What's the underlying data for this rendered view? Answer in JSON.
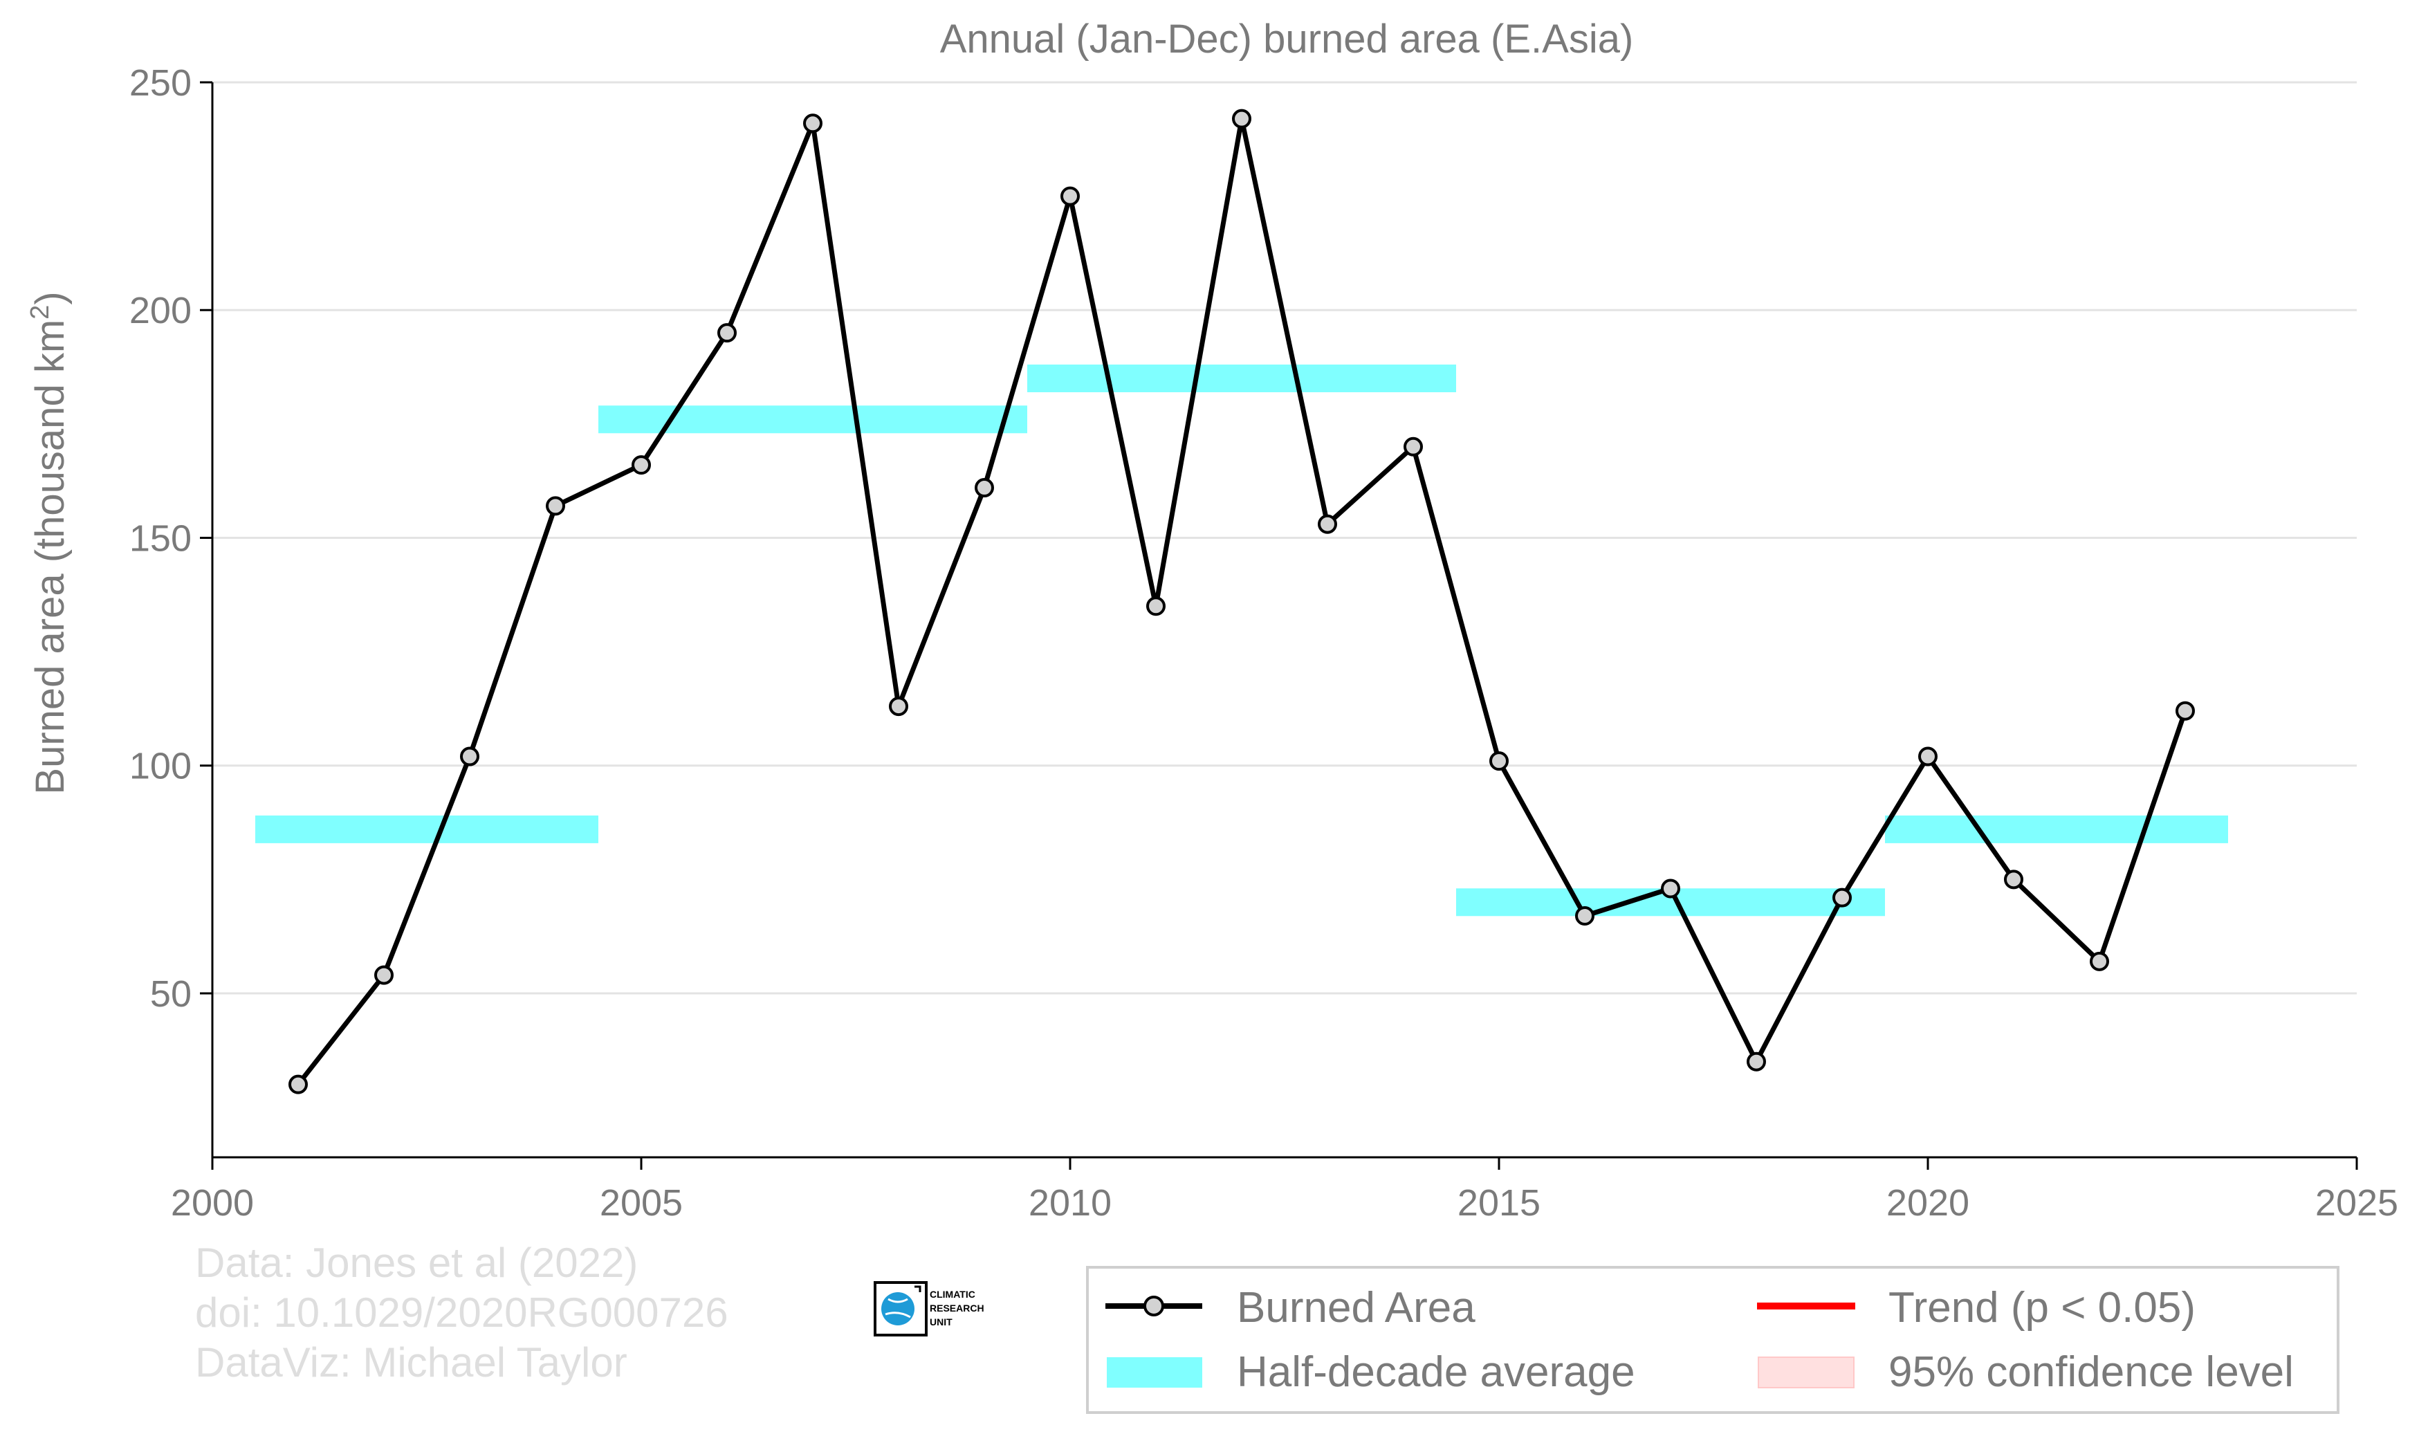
{
  "chart_data": {
    "type": "line",
    "title": "Annual (Jan-Dec) burned area (E.Asia)",
    "ylabel": "Burned area (thousand km",
    "ylabel_superscript": "2",
    "ylabel_suffix": ")",
    "xlabel": "",
    "xlim": [
      2000,
      2025
    ],
    "ylim": [
      14,
      250
    ],
    "xticks": [
      2000,
      2005,
      2010,
      2015,
      2020,
      2025
    ],
    "yticks": [
      50,
      100,
      150,
      200,
      250
    ],
    "grid": "horizontal",
    "series": [
      {
        "name": "Burned Area",
        "color": "#000000",
        "marker_fill": "#d3d3d3",
        "x": [
          2001,
          2002,
          2003,
          2004,
          2005,
          2006,
          2007,
          2008,
          2009,
          2010,
          2011,
          2012,
          2013,
          2014,
          2015,
          2016,
          2017,
          2018,
          2019,
          2020,
          2021,
          2022,
          2023
        ],
        "y": [
          30,
          54,
          102,
          157,
          166,
          195,
          241,
          113,
          161,
          225,
          135,
          242,
          153,
          170,
          101,
          67,
          73,
          35,
          71,
          102,
          75,
          57,
          112
        ]
      }
    ],
    "half_decade_average": {
      "name": "Half-decade average",
      "color": "#80ffff",
      "segments": [
        {
          "x0": 2000.5,
          "x1": 2004.5,
          "y": 86
        },
        {
          "x0": 2004.5,
          "x1": 2009.5,
          "y": 176
        },
        {
          "x0": 2009.5,
          "x1": 2014.5,
          "y": 185
        },
        {
          "x0": 2014.5,
          "x1": 2019.5,
          "y": 70
        },
        {
          "x0": 2019.5,
          "x1": 2023.5,
          "y": 86
        }
      ]
    },
    "legend": {
      "placement": "bottom-right",
      "items": [
        {
          "label": "Burned Area",
          "kind": "line-marker",
          "color": "#000000"
        },
        {
          "label": "Trend (p < 0.05)",
          "kind": "line",
          "color": "#ff0000"
        },
        {
          "label": "Half-decade average",
          "kind": "band",
          "color": "#80ffff"
        },
        {
          "label": "95% confidence level",
          "kind": "band",
          "color": "#ffe0e0"
        }
      ]
    }
  },
  "credits": {
    "line1": "Data: Jones et al (2022)",
    "line2": "doi: 10.1029/2020RG000726",
    "line3": "DataViz: Michael Taylor"
  },
  "logo": {
    "line1": "CLIMATIC",
    "line2": "RESEARCH",
    "line3": "UNIT"
  }
}
